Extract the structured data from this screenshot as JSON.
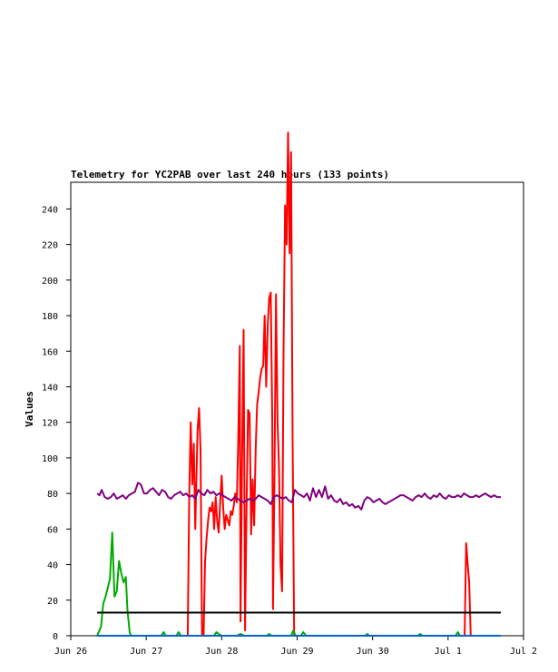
{
  "chart_data": {
    "type": "line",
    "title": "Telemetry for YC2PAB over last 240 hours (133 points)",
    "xlabel": "",
    "ylabel": "Values",
    "x_ticks": [
      "Jun 26",
      "Jun 27",
      "Jun 28",
      "Jun 29",
      "Jun 30",
      "Jul 1",
      "Jul 2"
    ],
    "xlim_days": [
      0,
      6
    ],
    "ylim": [
      0,
      255
    ],
    "y_ticks": [
      0,
      20,
      40,
      60,
      80,
      100,
      120,
      140,
      160,
      180,
      200,
      220,
      240
    ],
    "grid": false,
    "legend": "none",
    "series": [
      {
        "color": "#ff0000",
        "points": [
          [
            0.35,
            0
          ],
          [
            1.55,
            0
          ],
          [
            1.57,
            80
          ],
          [
            1.59,
            120
          ],
          [
            1.61,
            85
          ],
          [
            1.63,
            108
          ],
          [
            1.65,
            60
          ],
          [
            1.68,
            115
          ],
          [
            1.7,
            128
          ],
          [
            1.72,
            105
          ],
          [
            1.74,
            0
          ],
          [
            1.76,
            0
          ],
          [
            1.78,
            42
          ],
          [
            1.8,
            55
          ],
          [
            1.82,
            65
          ],
          [
            1.84,
            72
          ],
          [
            1.86,
            70
          ],
          [
            1.88,
            75
          ],
          [
            1.9,
            60
          ],
          [
            1.92,
            78
          ],
          [
            1.94,
            65
          ],
          [
            1.96,
            58
          ],
          [
            1.98,
            75
          ],
          [
            2.0,
            90
          ],
          [
            2.02,
            72
          ],
          [
            2.04,
            60
          ],
          [
            2.06,
            68
          ],
          [
            2.08,
            65
          ],
          [
            2.1,
            62
          ],
          [
            2.12,
            70
          ],
          [
            2.14,
            68
          ],
          [
            2.16,
            73
          ],
          [
            2.18,
            80
          ],
          [
            2.2,
            75
          ],
          [
            2.22,
            110
          ],
          [
            2.24,
            163
          ],
          [
            2.25,
            8
          ],
          [
            2.27,
            100
          ],
          [
            2.29,
            172
          ],
          [
            2.31,
            3
          ],
          [
            2.33,
            75
          ],
          [
            2.35,
            127
          ],
          [
            2.37,
            125
          ],
          [
            2.39,
            57
          ],
          [
            2.41,
            88
          ],
          [
            2.43,
            62
          ],
          [
            2.45,
            105
          ],
          [
            2.47,
            130
          ],
          [
            2.49,
            137
          ],
          [
            2.51,
            145
          ],
          [
            2.53,
            150
          ],
          [
            2.55,
            152
          ],
          [
            2.57,
            180
          ],
          [
            2.59,
            140
          ],
          [
            2.61,
            175
          ],
          [
            2.63,
            190
          ],
          [
            2.65,
            193
          ],
          [
            2.67,
            120
          ],
          [
            2.68,
            15
          ],
          [
            2.7,
            95
          ],
          [
            2.72,
            192
          ],
          [
            2.74,
            120
          ],
          [
            2.76,
            95
          ],
          [
            2.78,
            40
          ],
          [
            2.8,
            25
          ],
          [
            2.82,
            160
          ],
          [
            2.84,
            242
          ],
          [
            2.86,
            220
          ],
          [
            2.88,
            283
          ],
          [
            2.9,
            215
          ],
          [
            2.92,
            272
          ],
          [
            2.94,
            110
          ],
          [
            2.96,
            0
          ],
          [
            5.22,
            0
          ],
          [
            5.24,
            52
          ],
          [
            5.26,
            40
          ],
          [
            5.28,
            30
          ],
          [
            5.3,
            0
          ],
          [
            5.7,
            0
          ]
        ]
      },
      {
        "color": "#00aa00",
        "points": [
          [
            0.35,
            0
          ],
          [
            0.4,
            5
          ],
          [
            0.43,
            18
          ],
          [
            0.46,
            22
          ],
          [
            0.49,
            27
          ],
          [
            0.52,
            32
          ],
          [
            0.55,
            58
          ],
          [
            0.58,
            22
          ],
          [
            0.61,
            25
          ],
          [
            0.64,
            42
          ],
          [
            0.67,
            35
          ],
          [
            0.7,
            30
          ],
          [
            0.73,
            33
          ],
          [
            0.75,
            15
          ],
          [
            0.78,
            2
          ],
          [
            0.8,
            0
          ],
          [
            1.2,
            0
          ],
          [
            1.23,
            2
          ],
          [
            1.26,
            0
          ],
          [
            1.4,
            0
          ],
          [
            1.43,
            2
          ],
          [
            1.46,
            0
          ],
          [
            1.9,
            0
          ],
          [
            1.93,
            2
          ],
          [
            1.96,
            1
          ],
          [
            2.0,
            0
          ],
          [
            2.2,
            0
          ],
          [
            2.25,
            1
          ],
          [
            2.3,
            0
          ],
          [
            2.6,
            0
          ],
          [
            2.63,
            1
          ],
          [
            2.66,
            0
          ],
          [
            2.92,
            0
          ],
          [
            2.95,
            3
          ],
          [
            2.98,
            0
          ],
          [
            3.05,
            0
          ],
          [
            3.08,
            2
          ],
          [
            3.12,
            0
          ],
          [
            3.9,
            0
          ],
          [
            3.93,
            1
          ],
          [
            3.96,
            0
          ],
          [
            4.6,
            0
          ],
          [
            4.63,
            1
          ],
          [
            4.66,
            0
          ],
          [
            5.1,
            0
          ],
          [
            5.13,
            2
          ],
          [
            5.16,
            0
          ],
          [
            5.7,
            0
          ]
        ]
      },
      {
        "color": "#800080",
        "points": [
          [
            0.35,
            80
          ],
          [
            0.38,
            79
          ],
          [
            0.41,
            82
          ],
          [
            0.45,
            78
          ],
          [
            0.49,
            77
          ],
          [
            0.53,
            78
          ],
          [
            0.57,
            80
          ],
          [
            0.61,
            77
          ],
          [
            0.65,
            78
          ],
          [
            0.69,
            79
          ],
          [
            0.73,
            77
          ],
          [
            0.77,
            79
          ],
          [
            0.81,
            80
          ],
          [
            0.85,
            81
          ],
          [
            0.89,
            86
          ],
          [
            0.93,
            85
          ],
          [
            0.97,
            80
          ],
          [
            1.01,
            80
          ],
          [
            1.05,
            82
          ],
          [
            1.09,
            83
          ],
          [
            1.13,
            81
          ],
          [
            1.17,
            79
          ],
          [
            1.21,
            82
          ],
          [
            1.25,
            81
          ],
          [
            1.29,
            78
          ],
          [
            1.33,
            77
          ],
          [
            1.37,
            79
          ],
          [
            1.41,
            80
          ],
          [
            1.45,
            81
          ],
          [
            1.49,
            79
          ],
          [
            1.53,
            80
          ],
          [
            1.57,
            78
          ],
          [
            1.61,
            79
          ],
          [
            1.65,
            77
          ],
          [
            1.69,
            82
          ],
          [
            1.73,
            80
          ],
          [
            1.77,
            79
          ],
          [
            1.81,
            82
          ],
          [
            1.85,
            80
          ],
          [
            1.89,
            81
          ],
          [
            1.93,
            79
          ],
          [
            1.97,
            80
          ],
          [
            2.01,
            79
          ],
          [
            2.05,
            78
          ],
          [
            2.09,
            77
          ],
          [
            2.13,
            76
          ],
          [
            2.17,
            78
          ],
          [
            2.21,
            77
          ],
          [
            2.25,
            76
          ],
          [
            2.29,
            75
          ],
          [
            2.33,
            76
          ],
          [
            2.37,
            77
          ],
          [
            2.41,
            76
          ],
          [
            2.45,
            77
          ],
          [
            2.49,
            79
          ],
          [
            2.53,
            78
          ],
          [
            2.57,
            77
          ],
          [
            2.61,
            76
          ],
          [
            2.65,
            74
          ],
          [
            2.69,
            78
          ],
          [
            2.73,
            79
          ],
          [
            2.77,
            78
          ],
          [
            2.81,
            77
          ],
          [
            2.85,
            78
          ],
          [
            2.89,
            76
          ],
          [
            2.93,
            75
          ],
          [
            2.97,
            82
          ],
          [
            3.01,
            80
          ],
          [
            3.05,
            79
          ],
          [
            3.09,
            78
          ],
          [
            3.13,
            80
          ],
          [
            3.17,
            76
          ],
          [
            3.21,
            83
          ],
          [
            3.25,
            78
          ],
          [
            3.29,
            82
          ],
          [
            3.33,
            78
          ],
          [
            3.37,
            84
          ],
          [
            3.41,
            77
          ],
          [
            3.45,
            79
          ],
          [
            3.49,
            76
          ],
          [
            3.53,
            75
          ],
          [
            3.57,
            77
          ],
          [
            3.61,
            74
          ],
          [
            3.65,
            75
          ],
          [
            3.69,
            73
          ],
          [
            3.73,
            74
          ],
          [
            3.77,
            72
          ],
          [
            3.81,
            73
          ],
          [
            3.85,
            71
          ],
          [
            3.89,
            76
          ],
          [
            3.93,
            78
          ],
          [
            3.97,
            77
          ],
          [
            4.01,
            75
          ],
          [
            4.05,
            76
          ],
          [
            4.09,
            77
          ],
          [
            4.13,
            75
          ],
          [
            4.17,
            74
          ],
          [
            4.21,
            75
          ],
          [
            4.25,
            76
          ],
          [
            4.29,
            77
          ],
          [
            4.33,
            78
          ],
          [
            4.37,
            79
          ],
          [
            4.41,
            79
          ],
          [
            4.45,
            78
          ],
          [
            4.49,
            77
          ],
          [
            4.53,
            76
          ],
          [
            4.57,
            78
          ],
          [
            4.61,
            79
          ],
          [
            4.65,
            78
          ],
          [
            4.69,
            80
          ],
          [
            4.73,
            78
          ],
          [
            4.77,
            77
          ],
          [
            4.81,
            79
          ],
          [
            4.85,
            78
          ],
          [
            4.89,
            80
          ],
          [
            4.93,
            78
          ],
          [
            4.97,
            77
          ],
          [
            5.01,
            79
          ],
          [
            5.05,
            78
          ],
          [
            5.09,
            78
          ],
          [
            5.13,
            79
          ],
          [
            5.17,
            78
          ],
          [
            5.21,
            80
          ],
          [
            5.25,
            79
          ],
          [
            5.29,
            78
          ],
          [
            5.33,
            78
          ],
          [
            5.37,
            79
          ],
          [
            5.41,
            78
          ],
          [
            5.45,
            79
          ],
          [
            5.49,
            80
          ],
          [
            5.53,
            79
          ],
          [
            5.57,
            78
          ],
          [
            5.61,
            79
          ],
          [
            5.65,
            78
          ],
          [
            5.7,
            78
          ]
        ]
      },
      {
        "color": "#000000",
        "points": [
          [
            0.35,
            13
          ],
          [
            5.7,
            13
          ]
        ]
      },
      {
        "color": "#0066cc",
        "points": [
          [
            0.35,
            0
          ],
          [
            5.7,
            0
          ]
        ]
      }
    ]
  }
}
